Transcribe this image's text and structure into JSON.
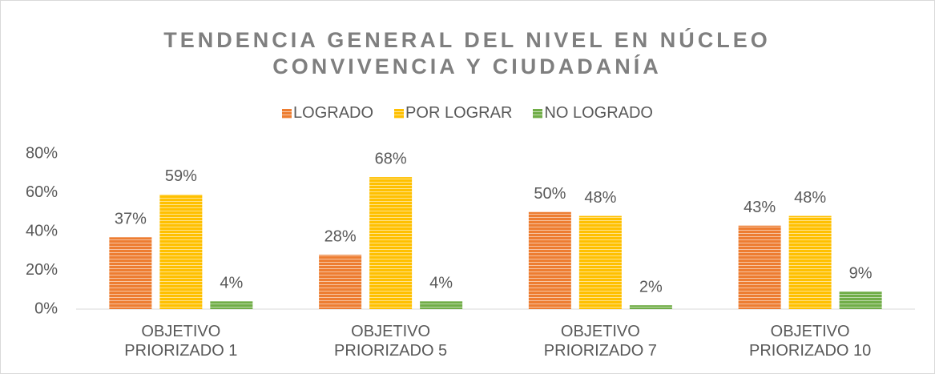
{
  "chart_data": {
    "type": "bar",
    "title": "TENDENCIA GENERAL DEL NIVEL EN NÚCLEO CONVIVENCIA Y CIUDADANÍA",
    "categories": [
      "OBJETIVO PRIORIZADO 1",
      "OBJETIVO PRIORIZADO 5",
      "OBJETIVO PRIORIZADO 7",
      "OBJETIVO PRIORIZADO 10"
    ],
    "series": [
      {
        "name": "LOGRADO",
        "color": "#ed7d31",
        "values": [
          37,
          28,
          50,
          43
        ],
        "value_labels": [
          "37%",
          "28%",
          "50%",
          "43%"
        ]
      },
      {
        "name": "POR LOGRAR",
        "color": "#ffc000",
        "values": [
          59,
          68,
          48,
          48
        ],
        "value_labels": [
          "59%",
          "68%",
          "48%",
          "48%"
        ]
      },
      {
        "name": "NO LOGRADO",
        "color": "#70ad47",
        "values": [
          4,
          4,
          2,
          9
        ],
        "value_labels": [
          "4%",
          "4%",
          "2%",
          "9%"
        ]
      }
    ],
    "ylim": [
      0,
      80
    ],
    "yticks": [
      {
        "value": 0,
        "label": "0%"
      },
      {
        "value": 20,
        "label": "20%"
      },
      {
        "value": 40,
        "label": "40%"
      },
      {
        "value": 60,
        "label": "60%"
      },
      {
        "value": 80,
        "label": "80%"
      }
    ],
    "legend": "top"
  }
}
